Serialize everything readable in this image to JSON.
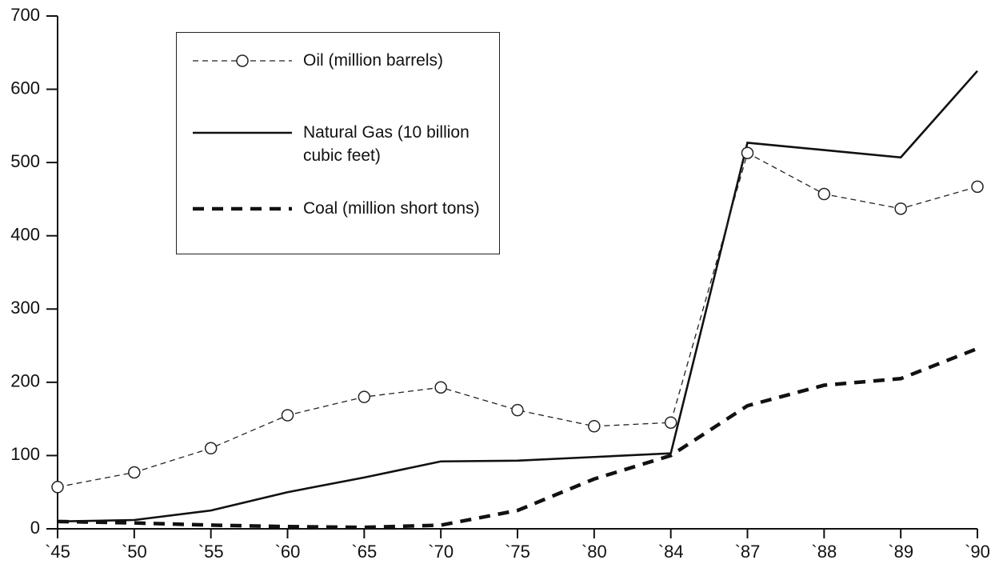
{
  "chart_data": {
    "type": "line",
    "categories": [
      "`45",
      "`50",
      "`55",
      "`60",
      "`65",
      "`70",
      "`75",
      "`80",
      "`84",
      "`87",
      "`88",
      "`89",
      "`90"
    ],
    "series": [
      {
        "name": "Oil (million barrels)",
        "color": "#222222",
        "line_style": "dashed",
        "marker": "circle",
        "values": [
          57,
          77,
          110,
          155,
          180,
          193,
          162,
          140,
          145,
          513,
          457,
          437,
          467
        ]
      },
      {
        "name": "Natural Gas (10 billion cubic feet)",
        "color": "#111111",
        "line_style": "solid",
        "marker": "none",
        "values": [
          10,
          12,
          25,
          50,
          70,
          92,
          93,
          98,
          103,
          527,
          517,
          507,
          625
        ]
      },
      {
        "name": "Coal (million short tons)",
        "color": "#111111",
        "line_style": "thick-dashed",
        "marker": "none",
        "values": [
          10,
          8,
          5,
          3,
          2,
          5,
          25,
          68,
          100,
          168,
          196,
          205,
          246
        ]
      }
    ],
    "ylim": [
      0,
      700
    ],
    "yticks": [
      0,
      100,
      200,
      300,
      400,
      500,
      600,
      700
    ],
    "grid": false
  }
}
